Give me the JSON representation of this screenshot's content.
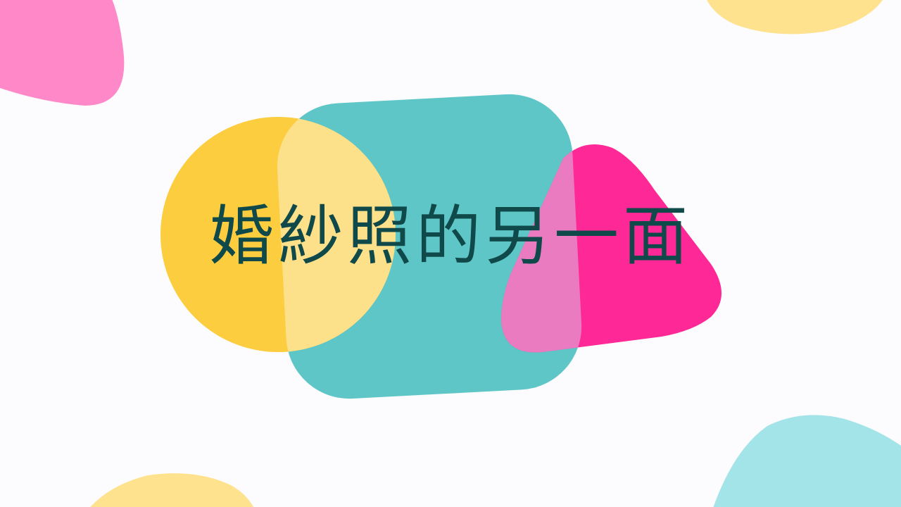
{
  "title": "婚紗照的另一面",
  "colors": {
    "background": "#fcfbfd",
    "title_text": "#10494a",
    "yellow": "#fccd3f",
    "yellow_light": "#fde08a",
    "teal": "#5ec6c7",
    "magenta": "#fe2896",
    "pink": "#ff88c8",
    "pink_overlap": "#ea7bc0",
    "light_blue": "#a3e4e8"
  },
  "decorations": [
    "pink-triangle-shape",
    "yellow-circle-shape",
    "teal-rounded-square-shape",
    "magenta-triangle-shape",
    "light-blue-blob-shape"
  ]
}
